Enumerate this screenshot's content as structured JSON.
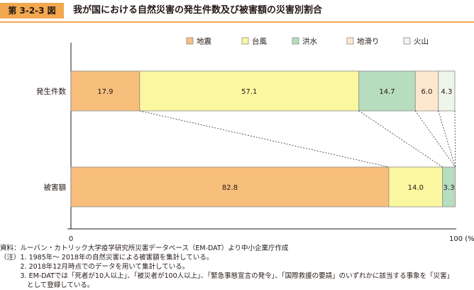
{
  "figure": {
    "number": "第 3-2-3 図",
    "title": "我が国における自然災害の発生件数及び被害額の災害別割合"
  },
  "colors": {
    "accent": "#f2a84f",
    "earthquake": "#f7be7c",
    "typhoon": "#fbf6a0",
    "flood": "#b6ddbe",
    "landslide": "#fde8cf",
    "volcano": "#eef5ea"
  },
  "chart_data": {
    "type": "bar",
    "orientation": "horizontal",
    "stacked": true,
    "title": "我が国における自然災害の発生件数及び被害額の災害別割合",
    "categories": [
      "発生件数",
      "被害額"
    ],
    "series": [
      {
        "name": "地震",
        "values": [
          17.9,
          82.8
        ],
        "labels": [
          "17.9",
          "82.8"
        ]
      },
      {
        "name": "台風",
        "values": [
          57.1,
          14.0
        ],
        "labels": [
          "57.1",
          "14.0"
        ]
      },
      {
        "name": "洪水",
        "values": [
          14.7,
          3.3
        ],
        "labels": [
          "14.7",
          "3.3"
        ]
      },
      {
        "name": "地滑り",
        "values": [
          6.0,
          0.0
        ],
        "labels": [
          "6.0",
          ""
        ]
      },
      {
        "name": "火山",
        "values": [
          4.3,
          0.0
        ],
        "labels": [
          "4.3",
          ""
        ]
      }
    ],
    "xlim": [
      0,
      100
    ],
    "x_ticks": [
      "0",
      "100"
    ],
    "x_unit": "(%)",
    "legend_position": "top-right",
    "connector_lines": true
  },
  "notes": {
    "source": "資料：ルーバン・カトリック大学疫学研究所災害データベース（EM-DAT）より中小企業庁作成",
    "lines": [
      "（注）1. 1985年～ 2018年の自然災害による被害額を集計している。",
      "　　　2. 2018年12月時点でのデータを用いて集計している。",
      "　　　3. EM-DATでは「死者が10人以上」、「被災者が100人以上」、「緊急事態宣言の発令」、「国際救援の要請」のいずれかに該当する事象を「災害」",
      "　　　　として登録している。"
    ]
  }
}
